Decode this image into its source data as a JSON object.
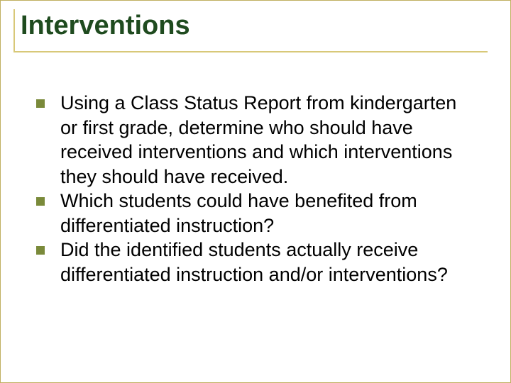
{
  "slide": {
    "title": "Interventions",
    "title_color": "#1f4b1f",
    "title_fontsize": 38,
    "title_fontweight": "bold",
    "rule_color": "#d8c878",
    "bullet_marker_color": "#7a8a3a",
    "bullet_marker_size": 12,
    "body_fontsize": 27,
    "body_color": "#000000",
    "background_color": "#ffffff",
    "bullets": [
      {
        "text": "Using a Class Status Report from kindergarten or first grade, determine who should have received interventions and which interventions they should have received."
      },
      {
        "text": "Which students could have benefited from differentiated instruction?"
      },
      {
        "text": "Did the identified students actually receive differentiated instruction and/or interventions?"
      }
    ]
  }
}
